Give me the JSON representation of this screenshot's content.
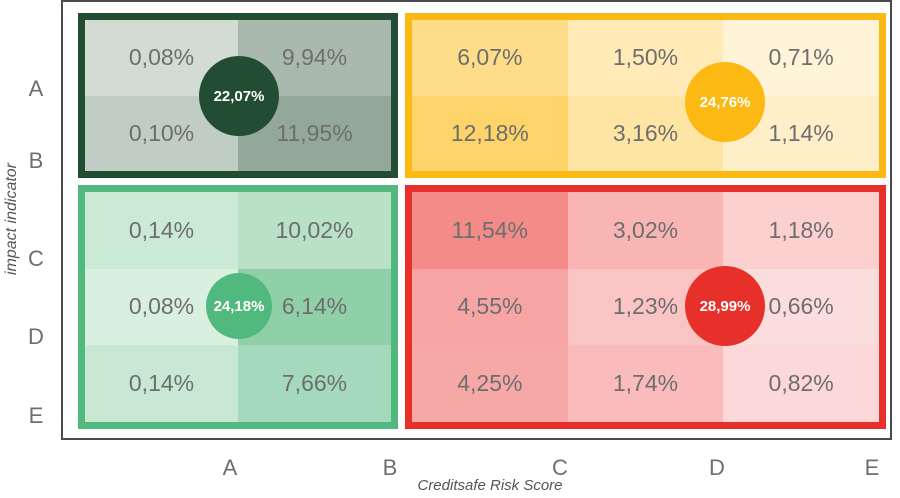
{
  "chart_data": {
    "type": "heatmap",
    "xlabel": "Creditsafe Risk Score",
    "ylabel": "impact indicator",
    "x_ticks": [
      "A",
      "B",
      "C",
      "D",
      "E"
    ],
    "y_ticks": [
      "A",
      "B",
      "C",
      "D",
      "E"
    ],
    "quadrants": [
      {
        "id": "top-left",
        "total": "22,07%",
        "color": "#234d33",
        "rows": [
          [
            "0,08%",
            "9,94%"
          ],
          [
            "0,10%",
            "11,95%"
          ]
        ],
        "cell_colors": [
          [
            "#d3dbd5",
            "#a9b9ad"
          ],
          [
            "#c0cdc4",
            "#93a898"
          ]
        ]
      },
      {
        "id": "top-right",
        "total": "24,76%",
        "color": "#fcb813",
        "rows": [
          [
            "6,07%",
            "1,50%",
            "0,71%"
          ],
          [
            "12,18%",
            "3,16%",
            "1,14%"
          ]
        ],
        "cell_colors": [
          [
            "#fedd8a",
            "#ffeab8",
            "#fff3d8"
          ],
          [
            "#fdd36a",
            "#ffe5a4",
            "#ffefc8"
          ]
        ]
      },
      {
        "id": "bottom-left",
        "total": "24,18%",
        "color": "#52b97e",
        "rows": [
          [
            "0,14%",
            "10,02%"
          ],
          [
            "0,08%",
            "6,14%"
          ],
          [
            "0,14%",
            "7,66%"
          ]
        ],
        "cell_colors": [
          [
            "#cbead6",
            "#b8e1c6"
          ],
          [
            "#d9f0e1",
            "#8fd0a8"
          ],
          [
            "#c8e8d3",
            "#a4dabb"
          ]
        ]
      },
      {
        "id": "bottom-right",
        "total": "28,99%",
        "color": "#e8302a",
        "rows": [
          [
            "11,54%",
            "3,02%",
            "1,18%"
          ],
          [
            "4,55%",
            "1,23%",
            "0,66%"
          ],
          [
            "4,25%",
            "1,74%",
            "0,82%"
          ]
        ],
        "cell_colors": [
          [
            "#f38b89",
            "#f8b5b4",
            "#fbd0cf"
          ],
          [
            "#f6a5a4",
            "#fac4c4",
            "#fcdddd"
          ],
          [
            "#f6a8a7",
            "#f9bbbb",
            "#fcd8d8"
          ]
        ]
      }
    ]
  }
}
